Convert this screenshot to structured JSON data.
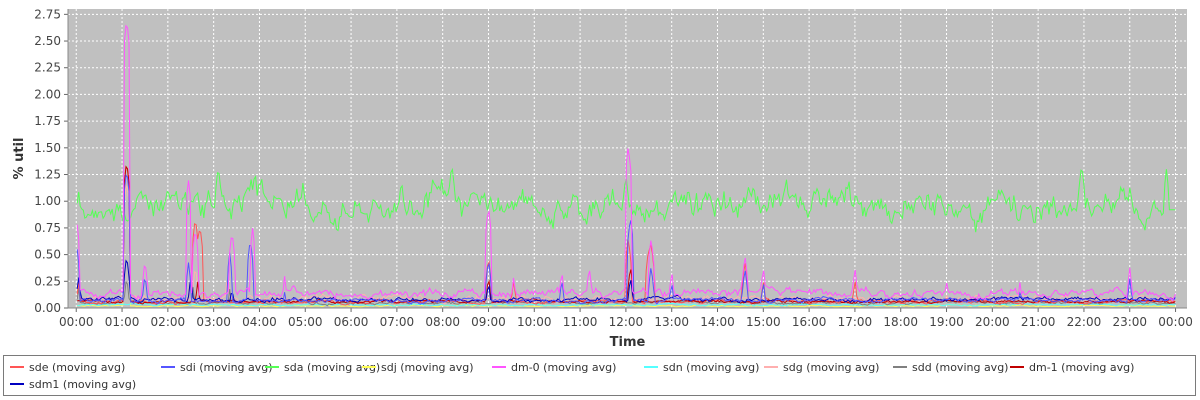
{
  "chart_data": {
    "type": "line",
    "xlabel": "Time",
    "ylabel": "% util",
    "x_ticks": [
      "00:00",
      "01:00",
      "02:00",
      "03:00",
      "04:00",
      "05:00",
      "06:00",
      "07:00",
      "08:00",
      "09:00",
      "10:00",
      "11:00",
      "12:00",
      "13:00",
      "14:00",
      "15:00",
      "16:00",
      "17:00",
      "18:00",
      "19:00",
      "20:00",
      "21:00",
      "22:00",
      "23:00",
      "00:00"
    ],
    "y_ticks": [
      "0.00",
      "0.25",
      "0.50",
      "0.75",
      "1.00",
      "1.25",
      "1.50",
      "1.75",
      "2.00",
      "2.25",
      "2.50",
      "2.75"
    ],
    "xlim_hours": [
      -0.18,
      24.25
    ],
    "ylim": [
      0,
      2.8
    ],
    "grid": true,
    "legend_position": "bottom",
    "background_color": "#c0c0c0",
    "series": [
      {
        "name": "sde (moving avg)",
        "color": "#ff5555",
        "base": 0.06,
        "noise": 0.012,
        "spikes": [
          [
            0.05,
            0.25
          ],
          [
            1.1,
            1.38
          ],
          [
            1.7,
            0.1
          ],
          [
            2.5,
            0.3
          ],
          [
            2.6,
            0.85
          ],
          [
            2.7,
            0.78
          ],
          [
            9.0,
            0.48
          ],
          [
            9.55,
            0.27
          ],
          [
            12.05,
            0.67
          ],
          [
            12.55,
            0.62
          ],
          [
            14.6,
            0.45
          ],
          [
            15.0,
            0.27
          ],
          [
            17.0,
            0.27
          ],
          [
            12.5,
            0.58
          ]
        ]
      },
      {
        "name": "sdi (moving avg)",
        "color": "#5555ff",
        "base": 0.07,
        "noise": 0.015,
        "spikes": [
          [
            0.02,
            0.55
          ],
          [
            0.6,
            0.1
          ],
          [
            1.1,
            1.3
          ],
          [
            1.5,
            0.32
          ],
          [
            2.45,
            0.43
          ],
          [
            3.35,
            0.52
          ],
          [
            3.8,
            0.65
          ],
          [
            4.55,
            0.15
          ],
          [
            9.0,
            0.46
          ],
          [
            10.6,
            0.28
          ],
          [
            12.1,
            0.86
          ],
          [
            12.55,
            0.4
          ],
          [
            13.0,
            0.25
          ],
          [
            14.6,
            0.38
          ],
          [
            15.0,
            0.25
          ],
          [
            20.6,
            0.15
          ],
          [
            23.0,
            0.28
          ]
        ]
      },
      {
        "name": "sda (moving avg)",
        "color": "#55ff55",
        "base": 0.97,
        "noise": 0.1,
        "start": 0.88,
        "end": 0.92,
        "spikes": [
          [
            0.05,
            1.1
          ],
          [
            2.0,
            1.15
          ],
          [
            3.1,
            1.33
          ],
          [
            4.0,
            1.22
          ],
          [
            7.1,
            1.2
          ],
          [
            8.2,
            1.35
          ],
          [
            9.0,
            1.0
          ],
          [
            12.0,
            1.25
          ],
          [
            15.5,
            1.23
          ],
          [
            21.95,
            1.35
          ],
          [
            23.8,
            1.3
          ]
        ]
      },
      {
        "name": "sdj (moving avg)",
        "color": "#ffff55",
        "base": 0.02,
        "noise": 0.005,
        "spikes": [
          [
            1.1,
            1.2
          ]
        ]
      },
      {
        "name": "dm-0 (moving avg)",
        "color": "#ff55ff",
        "base": 0.14,
        "noise": 0.03,
        "spikes": [
          [
            0.02,
            0.78
          ],
          [
            1.1,
            2.7
          ],
          [
            1.5,
            0.45
          ],
          [
            2.45,
            1.2
          ],
          [
            2.6,
            0.75
          ],
          [
            3.4,
            0.72
          ],
          [
            3.85,
            0.75
          ],
          [
            4.55,
            0.3
          ],
          [
            9.0,
            0.95
          ],
          [
            9.55,
            0.3
          ],
          [
            10.6,
            0.35
          ],
          [
            11.2,
            0.39
          ],
          [
            12.05,
            1.52
          ],
          [
            12.55,
            0.66
          ],
          [
            13.0,
            0.35
          ],
          [
            14.6,
            0.5
          ],
          [
            15.0,
            0.38
          ],
          [
            17.0,
            0.38
          ],
          [
            19.0,
            0.25
          ],
          [
            20.6,
            0.25
          ],
          [
            23.0,
            0.38
          ]
        ]
      },
      {
        "name": "sdn (moving avg)",
        "color": "#55ffff",
        "base": 0.03,
        "noise": 0.006,
        "spikes": []
      },
      {
        "name": "sdg (moving avg)",
        "color": "#ffafaf",
        "base": 0.09,
        "noise": 0.02,
        "spikes": [
          [
            0.05,
            0.2
          ],
          [
            1.1,
            1.2
          ],
          [
            2.6,
            0.4
          ],
          [
            3.3,
            0.3
          ]
        ]
      },
      {
        "name": "sdd (moving avg)",
        "color": "#808080",
        "base": 0.05,
        "noise": 0.01,
        "spikes": [
          [
            0.05,
            0.2
          ],
          [
            1.1,
            0.3
          ],
          [
            2.55,
            0.2
          ],
          [
            3.35,
            0.18
          ]
        ]
      },
      {
        "name": "dm-1 (moving avg)",
        "color": "#c00000",
        "base": 0.06,
        "noise": 0.01,
        "spikes": [
          [
            1.1,
            1.38
          ],
          [
            2.65,
            0.25
          ],
          [
            9.0,
            0.3
          ],
          [
            12.1,
            0.4
          ]
        ]
      },
      {
        "name": "sdm1 (moving avg)",
        "color": "#0000c0",
        "base": 0.08,
        "noise": 0.015,
        "spikes": [
          [
            0.05,
            0.3
          ],
          [
            1.1,
            0.5
          ],
          [
            2.5,
            0.3
          ],
          [
            3.4,
            0.2
          ],
          [
            9.0,
            0.25
          ],
          [
            12.1,
            0.3
          ]
        ]
      }
    ]
  }
}
